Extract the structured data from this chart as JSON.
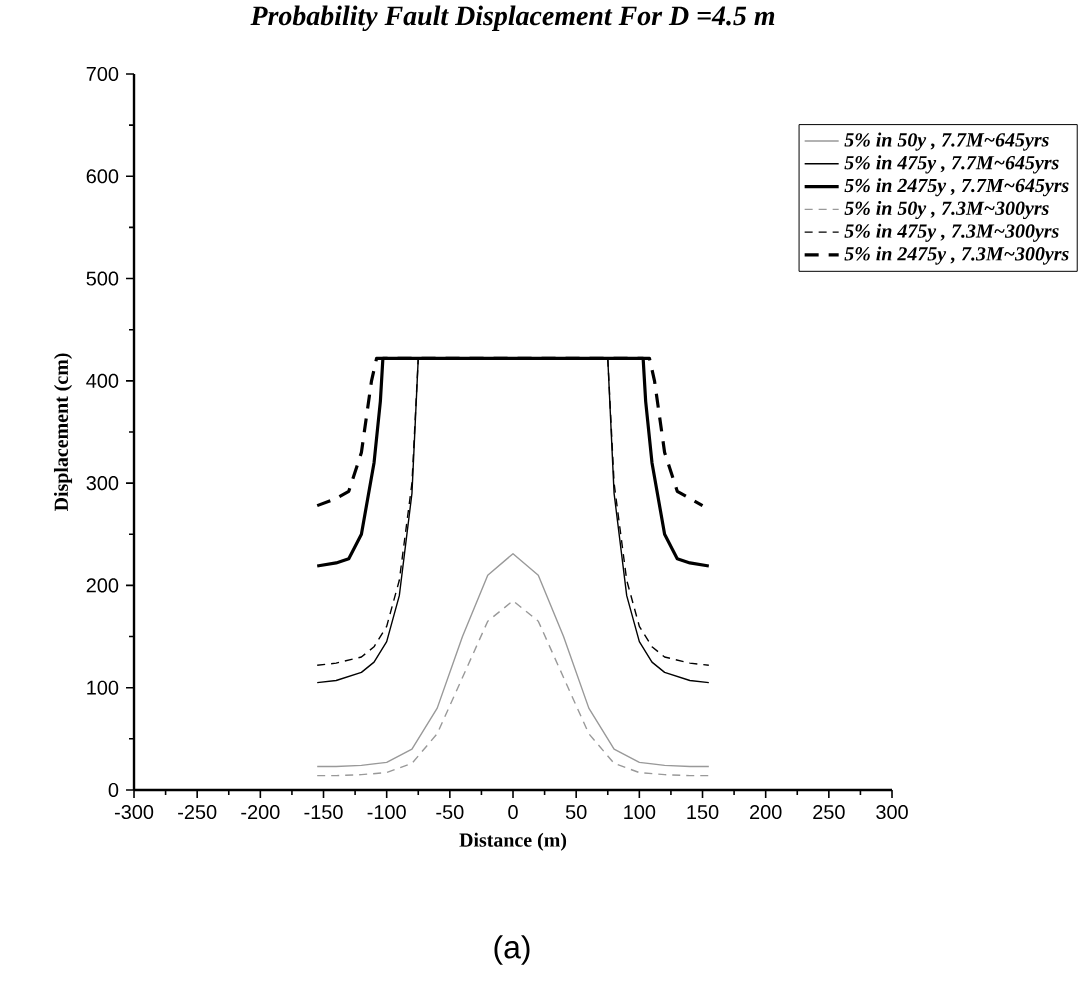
{
  "chart_data": {
    "type": "line",
    "title": "Probability Fault Displacement For D =4.5 m",
    "xlabel": "Distance (m)",
    "ylabel": "Displacement (cm)",
    "xlim": [
      -300,
      300
    ],
    "ylim": [
      0,
      700
    ],
    "xticks": [
      -300,
      -250,
      -200,
      -150,
      -100,
      -50,
      0,
      50,
      100,
      150,
      200,
      250,
      300
    ],
    "yticks": [
      0,
      100,
      200,
      300,
      400,
      500,
      600,
      700
    ],
    "grid": false,
    "legend": "top right",
    "marker": "none",
    "annotations": [
      "(a)"
    ],
    "series": [
      {
        "name": "5% in 50y , 7.7M~645yrs",
        "color": "#999999",
        "line_style": "solid",
        "x": [
          -155,
          -140,
          -120,
          -100,
          -80,
          -60,
          -40,
          -20,
          0,
          20,
          40,
          60,
          80,
          100,
          120,
          140,
          155
        ],
        "values": [
          23,
          23,
          24,
          27,
          40,
          80,
          150,
          210,
          231,
          210,
          150,
          80,
          40,
          27,
          24,
          23,
          23
        ]
      },
      {
        "name": "5% in 475y , 7.7M~645yrs",
        "color": "#000000",
        "line_style": "solid",
        "x": [
          -155,
          -140,
          -120,
          -110,
          -100,
          -90,
          -80,
          -75,
          75,
          80,
          90,
          100,
          110,
          120,
          140,
          155
        ],
        "values": [
          105,
          107,
          115,
          125,
          145,
          190,
          290,
          422,
          422,
          290,
          190,
          145,
          125,
          115,
          107,
          105
        ]
      },
      {
        "name": "5% in 2475y , 7.7M~645yrs",
        "color": "#000000",
        "line_style": "solid",
        "x": [
          -155,
          -140,
          -130,
          -120,
          -110,
          -105,
          -103,
          103,
          105,
          110,
          120,
          130,
          140,
          155
        ],
        "values": [
          219,
          222,
          226,
          250,
          320,
          380,
          422,
          422,
          380,
          320,
          250,
          226,
          222,
          219
        ]
      },
      {
        "name": "5% in 50y , 7.3M~300yrs",
        "color": "#999999",
        "line_style": "dashed",
        "x": [
          -155,
          -140,
          -120,
          -100,
          -80,
          -60,
          -40,
          -20,
          0,
          20,
          40,
          60,
          80,
          100,
          120,
          140,
          155
        ],
        "values": [
          14,
          14,
          15,
          17,
          26,
          55,
          110,
          165,
          185,
          165,
          110,
          55,
          26,
          17,
          15,
          14,
          14
        ]
      },
      {
        "name": "5% in 475y , 7.3M~300yrs",
        "color": "#000000",
        "line_style": "dashed",
        "x": [
          -155,
          -140,
          -120,
          -110,
          -100,
          -90,
          -80,
          -75,
          75,
          80,
          90,
          100,
          110,
          120,
          140,
          155
        ],
        "values": [
          122,
          124,
          130,
          140,
          160,
          205,
          300,
          422,
          422,
          300,
          205,
          160,
          140,
          130,
          124,
          122
        ]
      },
      {
        "name": "5% in 2475y , 7.3M~300yrs",
        "color": "#000000",
        "line_style": "dashed",
        "x": [
          -155,
          -140,
          -130,
          -120,
          -112,
          -108,
          108,
          112,
          120,
          130,
          140,
          150
        ],
        "values": [
          278,
          285,
          292,
          330,
          400,
          422,
          422,
          400,
          330,
          292,
          285,
          278
        ]
      }
    ]
  }
}
